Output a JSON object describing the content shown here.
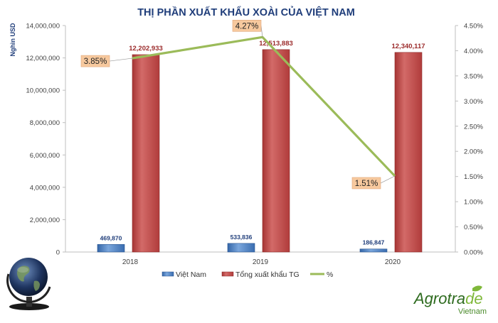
{
  "chart_data": {
    "type": "bar+line",
    "title": "THỊ PHẦN XUẤT KHẨU XOÀI CỦA VIỆT NAM",
    "ylabel": "Nghìn USD",
    "categories": [
      "2018",
      "2019",
      "2020"
    ],
    "y_left": {
      "min": 0,
      "max": 14000000,
      "ticks": [
        "0",
        "2,000,000",
        "4,000,000",
        "6,000,000",
        "8,000,000",
        "10,000,000",
        "12,000,000",
        "14,000,000"
      ],
      "tick_values": [
        0,
        2000000,
        4000000,
        6000000,
        8000000,
        10000000,
        12000000,
        14000000
      ]
    },
    "y_right": {
      "min": 0,
      "max": 4.5,
      "ticks": [
        "0.00%",
        "0.50%",
        "1.00%",
        "1.50%",
        "2.00%",
        "2.50%",
        "3.00%",
        "3.50%",
        "4.00%",
        "4.50%"
      ],
      "tick_values": [
        0,
        0.5,
        1.0,
        1.5,
        2.0,
        2.5,
        3.0,
        3.5,
        4.0,
        4.5
      ]
    },
    "series": [
      {
        "name": "Việt Nam",
        "kind": "bar",
        "color": "#4a7ec2",
        "values": [
          469870,
          533836,
          186847
        ],
        "labels": [
          "469,870",
          "533,836",
          "186,847"
        ]
      },
      {
        "name": "Tổng xuất khẩu TG",
        "kind": "bar",
        "color": "#c9504f",
        "values": [
          12202933,
          12513883,
          12340117
        ],
        "labels": [
          "12,202,933",
          "12,513,883",
          "12,340,117"
        ]
      },
      {
        "name": "%",
        "kind": "line",
        "axis": "right",
        "color": "#9bbb59",
        "values": [
          3.85,
          4.27,
          1.51
        ],
        "labels": [
          "3.85%",
          "4.27%",
          "1.51%"
        ]
      }
    ],
    "legend_position": "bottom",
    "grid": false
  },
  "brand": {
    "name_part1": "Agrotra",
    "name_part2": "de",
    "sub": "Vietnam",
    "color_dark": "#2e6b1f",
    "color_light": "#7fb83a"
  }
}
